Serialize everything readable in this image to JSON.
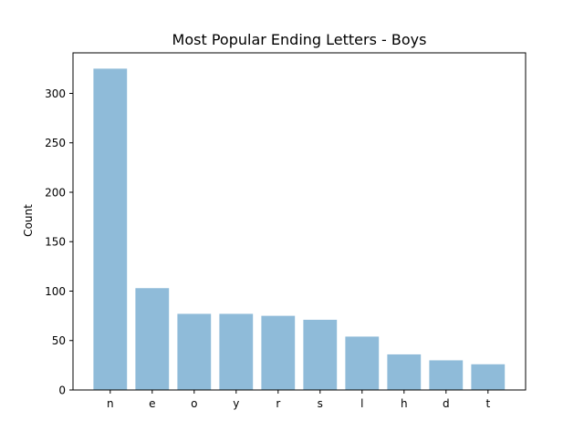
{
  "chart_data": {
    "type": "bar",
    "title": "Most Popular Ending Letters - Boys",
    "xlabel": "",
    "ylabel": "Count",
    "categories": [
      "n",
      "e",
      "o",
      "y",
      "r",
      "s",
      "l",
      "h",
      "d",
      "t"
    ],
    "values": [
      325,
      103,
      77,
      77,
      75,
      71,
      54,
      36,
      30,
      26
    ],
    "ylim": [
      0,
      341
    ],
    "yticks": [
      0,
      50,
      100,
      150,
      200,
      250,
      300
    ],
    "grid": false,
    "legend": "none",
    "bar_color": "#8fbbd9"
  }
}
